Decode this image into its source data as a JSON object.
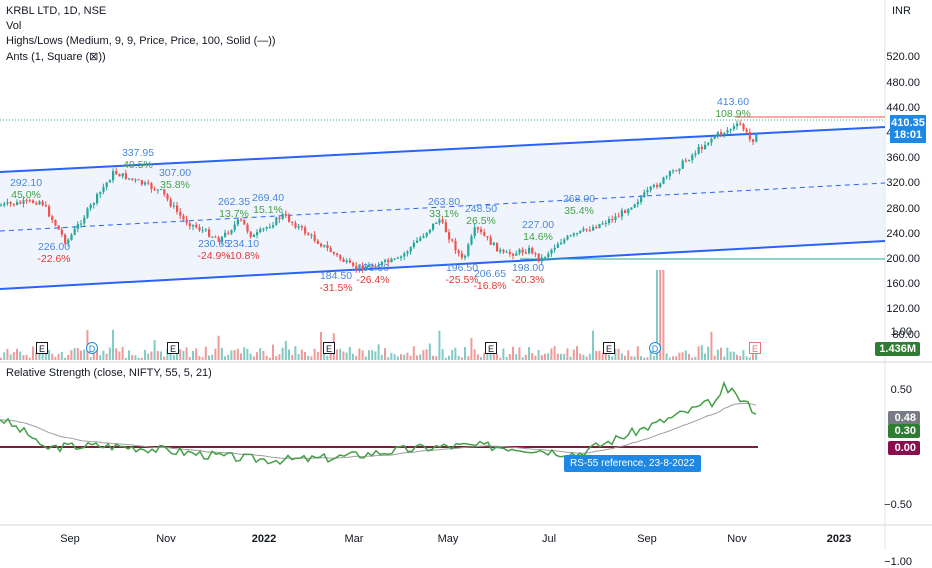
{
  "legend": {
    "title": "KRBL LTD, 1D, NSE",
    "vol": "Vol",
    "highs_lows": "Highs/Lows (Medium, 9, 9, Price, Price, 100, Solid (—))",
    "ants": "Ants (1, Square (⊠))",
    "rs": "Relative Strength (close, NIFTY, 55, 5, 21)"
  },
  "currency": "INR",
  "price_axis": [
    "520.00",
    "480.00",
    "440.00",
    "400.00",
    "360.00",
    "320.00",
    "280.00",
    "240.00",
    "200.00",
    "160.00",
    "120.00",
    "80.00"
  ],
  "rs_axis": [
    "1.00",
    "0.50",
    "0.00",
    "−0.50",
    "−1.00"
  ],
  "x_axis": [
    {
      "label": "Sep",
      "bold": false
    },
    {
      "label": "Nov",
      "bold": false
    },
    {
      "label": "2022",
      "bold": true
    },
    {
      "label": "Mar",
      "bold": false
    },
    {
      "label": "May",
      "bold": false
    },
    {
      "label": "Jul",
      "bold": false
    },
    {
      "label": "Sep",
      "bold": false
    },
    {
      "label": "Nov",
      "bold": false
    },
    {
      "label": "2023",
      "bold": true
    }
  ],
  "tags": {
    "price": "410.35",
    "countdown": "18:01",
    "volume": "1.436M",
    "rs_ma": "0.48",
    "rs_value": "0.30",
    "rs_zero": "0.00"
  },
  "tooltip": "RS-55 reference, 23-8-2022",
  "pivots": [
    {
      "price": "292.10",
      "pct": "45.0%",
      "dir": "up"
    },
    {
      "price": "226.00",
      "pct": "-22.6%",
      "dir": "dn"
    },
    {
      "price": "337.95",
      "pct": "49.5%",
      "dir": "up"
    },
    {
      "price": "307.00",
      "pct": "35.8%",
      "dir": "up"
    },
    {
      "price": "262.35",
      "pct": "13.7%",
      "dir": "up"
    },
    {
      "price": "230.65",
      "pct": "-24.9%",
      "dir": "dn"
    },
    {
      "price": "234.10",
      "pct": "-10.8%",
      "dir": "dn"
    },
    {
      "price": "269.40",
      "pct": "15.1%",
      "dir": "up"
    },
    {
      "price": "184.50",
      "pct": "-31.5%",
      "dir": "dn"
    },
    {
      "price": "198.30",
      "pct": "-26.4%",
      "dir": "dn"
    },
    {
      "price": "263.80",
      "pct": "33.1%",
      "dir": "up"
    },
    {
      "price": "196.50",
      "pct": "-25.5%",
      "dir": "dn"
    },
    {
      "price": "248.50",
      "pct": "26.5%",
      "dir": "up"
    },
    {
      "price": "206.65",
      "pct": "-16.8%",
      "dir": "dn"
    },
    {
      "price": "198.00",
      "pct": "-20.3%",
      "dir": "dn"
    },
    {
      "price": "227.00",
      "pct": "14.6%",
      "dir": "up"
    },
    {
      "price": "268.00",
      "pct": "35.4%",
      "dir": "up"
    },
    {
      "price": "413.60",
      "pct": "108.9%",
      "dir": "up"
    }
  ],
  "events": [
    "E",
    "D",
    "E",
    "E",
    "E",
    "E",
    "D",
    "E"
  ],
  "colors": {
    "up": "#26a69a",
    "down": "#ef5350",
    "channel": "#2962ff",
    "rs": "#43a047",
    "rs_neg": "#e53935",
    "rs_ma": "#9e9e9e",
    "tag_blue": "#1e88e5",
    "tag_green": "#2e7d32",
    "tag_zero": "#880e4f"
  },
  "chart_data": {
    "type": "line",
    "title": "KRBL LTD, 1D, NSE",
    "xlabel": "",
    "ylabel": "INR",
    "ylim": [
      60,
      560
    ],
    "last_price": 410.35,
    "x": [
      "2021-07-15",
      "2021-08-10",
      "2021-08-26",
      "2021-09-25",
      "2021-10-25",
      "2021-11-08",
      "2021-12-01",
      "2021-12-14",
      "2021-12-22",
      "2022-01-10",
      "2022-02-24",
      "2022-03-24",
      "2022-04-19",
      "2022-05-04",
      "2022-05-12",
      "2022-05-30",
      "2022-06-16",
      "2022-06-22",
      "2022-07-04",
      "2022-08-10",
      "2022-09-10",
      "2022-10-10",
      "2022-10-27",
      "2022-11-03",
      "2022-11-07"
    ],
    "series": [
      {
        "values": [
          285,
          292.1,
          226,
          337.95,
          307,
          262.35,
          230.65,
          262.35,
          234.1,
          269.4,
          184.5,
          198.3,
          263.8,
          196.5,
          248.5,
          206.65,
          215,
          198,
          227,
          268,
          330,
          395,
          413.6,
          385,
          410.35
        ]
      }
    ],
    "volume_series": {
      "name": "Vol",
      "last": "1.436M"
    },
    "rs": {
      "name": "Relative Strength (close, NIFTY, 55, 5, 21)",
      "last": 0.3,
      "ma": 0.48,
      "ylim": [
        -1.2,
        1.2
      ]
    }
  }
}
